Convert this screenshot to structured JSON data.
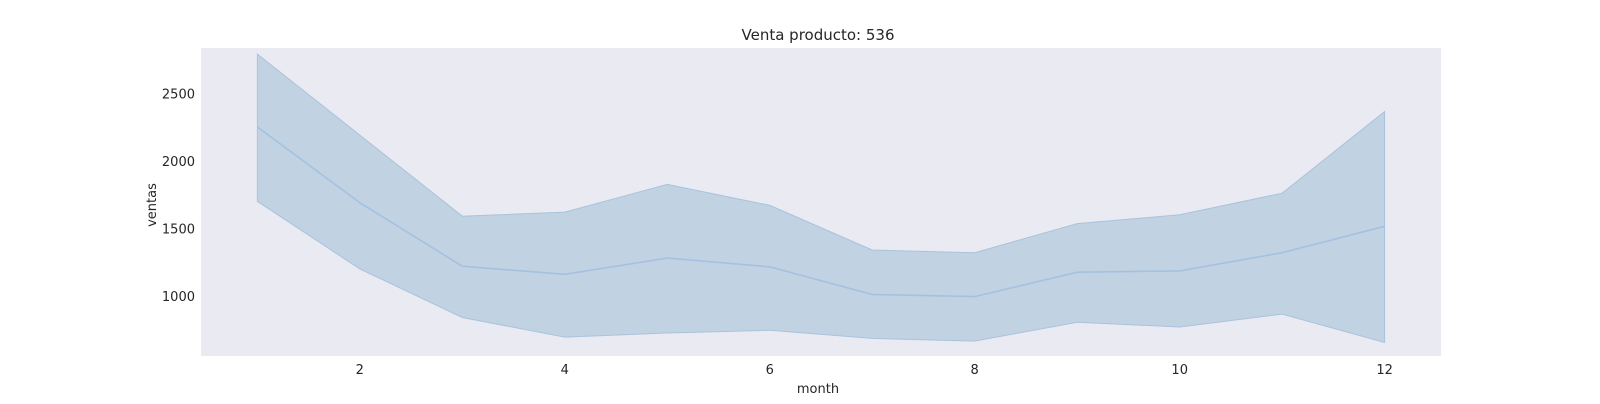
{
  "chart_data": {
    "type": "area",
    "title": "Venta producto: 536",
    "xlabel": "month",
    "ylabel": "ventas",
    "x": [
      1,
      2,
      3,
      4,
      5,
      6,
      7,
      8,
      9,
      10,
      11,
      12
    ],
    "series": [
      {
        "values": [
          2250,
          1690,
          1220,
          1160,
          1280,
          1215,
          1010,
          995,
          1175,
          1185,
          1320,
          1515
        ],
        "lower": [
          1700,
          1200,
          840,
          695,
          725,
          745,
          685,
          665,
          805,
          770,
          865,
          655
        ],
        "upper": [
          2790,
          2190,
          1590,
          1620,
          1825,
          1670,
          1340,
          1320,
          1535,
          1600,
          1760,
          2365
        ]
      }
    ],
    "xlim": [
      0.45,
      12.55
    ],
    "ylim": [
      555,
      2835
    ],
    "xticks": [
      2,
      4,
      6,
      8,
      10,
      12
    ],
    "yticks": [
      1000,
      1500,
      2000,
      2500
    ],
    "grid": false,
    "colors": {
      "plot_background": "#eaeaf2",
      "line": "#a4c2df",
      "band_fill": "#c1d2e3",
      "band_edge": "#a9c3dc"
    }
  }
}
